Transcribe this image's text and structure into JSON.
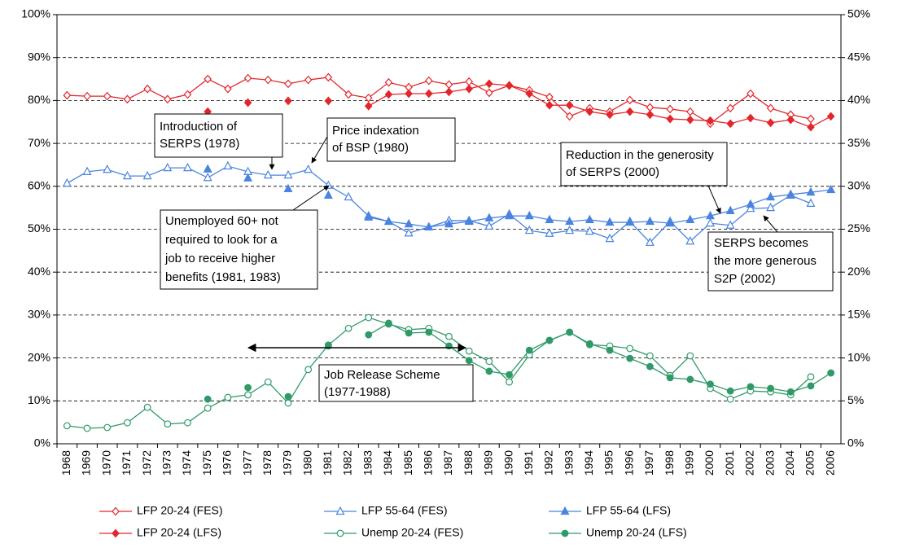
{
  "chart_data": {
    "type": "line",
    "categories": [
      "1968",
      "1969",
      "1970",
      "1971",
      "1972",
      "1973",
      "1974",
      "1975",
      "1976",
      "1977",
      "1978",
      "1979",
      "1980",
      "1981",
      "1982",
      "1983",
      "1984",
      "1985",
      "1986",
      "1987",
      "1988",
      "1989",
      "1990",
      "1991",
      "1992",
      "1993",
      "1994",
      "1995",
      "1996",
      "1997",
      "1998",
      "1999",
      "2000",
      "2001",
      "2002",
      "2003",
      "2004",
      "2005",
      "2006"
    ],
    "ylim": [
      0,
      100
    ],
    "yticks": [
      {
        "value": 0,
        "label": "0%"
      },
      {
        "value": 10,
        "label": "10%"
      },
      {
        "value": 20,
        "label": "20%"
      },
      {
        "value": 30,
        "label": "30%"
      },
      {
        "value": 40,
        "label": "40%"
      },
      {
        "value": 50,
        "label": "50%"
      },
      {
        "value": 60,
        "label": "60%"
      },
      {
        "value": 70,
        "label": "70%"
      },
      {
        "value": 80,
        "label": "80%"
      },
      {
        "value": 90,
        "label": "90%"
      },
      {
        "value": 100,
        "label": "100%"
      }
    ],
    "y2lim": [
      0,
      50
    ],
    "y2ticks": [
      {
        "value": 0,
        "label": "0%"
      },
      {
        "value": 5,
        "label": "5%"
      },
      {
        "value": 10,
        "label": "10%"
      },
      {
        "value": 15,
        "label": "15%"
      },
      {
        "value": 20,
        "label": "20%"
      },
      {
        "value": 25,
        "label": "25%"
      },
      {
        "value": 30,
        "label": "30%"
      },
      {
        "value": 35,
        "label": "35%"
      },
      {
        "value": 40,
        "label": "40%"
      },
      {
        "value": 45,
        "label": "45%"
      },
      {
        "value": 50,
        "label": "50%"
      }
    ],
    "grid": true,
    "legend": "bottom",
    "series": [
      {
        "name": "LFP 20-24 (FES)",
        "color": "#e3262b",
        "marker": "diamond",
        "filled": false,
        "values": [
          81.2,
          81.0,
          81.0,
          80.3,
          82.7,
          80.3,
          81.4,
          85.0,
          82.7,
          85.2,
          84.8,
          83.9,
          84.8,
          85.4,
          81.4,
          80.6,
          84.2,
          83.1,
          84.6,
          83.7,
          84.4,
          81.8,
          83.5,
          82.4,
          80.8,
          76.3,
          78.2,
          77.4,
          80.1,
          78.4,
          78.0,
          77.4,
          74.6,
          78.2,
          81.6,
          78.2,
          76.7,
          75.7,
          null
        ]
      },
      {
        "name": "LFP 55-64 (FES)",
        "color": "#4a84e0",
        "marker": "triangle",
        "filled": false,
        "values": [
          60.7,
          63.4,
          63.9,
          62.4,
          62.4,
          64.3,
          64.3,
          62.0,
          64.7,
          63.4,
          62.6,
          62.6,
          63.9,
          60.2,
          57.5,
          53.1,
          51.8,
          49.1,
          50.5,
          52.0,
          52.0,
          50.7,
          53.5,
          49.7,
          49.0,
          49.7,
          49.5,
          47.8,
          51.8,
          46.9,
          51.8,
          47.2,
          51.4,
          50.9,
          54.8,
          55.0,
          57.9,
          56.0,
          null
        ]
      },
      {
        "name": "LFP 55-64 (LFS)",
        "color": "#4a84e0",
        "marker": "triangle",
        "filled": true,
        "values": [
          null,
          null,
          null,
          null,
          null,
          null,
          null,
          64.0,
          null,
          61.9,
          null,
          59.4,
          null,
          57.9,
          null,
          52.8,
          51.8,
          51.2,
          50.5,
          51.2,
          51.8,
          52.6,
          53.1,
          53.1,
          52.2,
          51.8,
          52.2,
          51.6,
          51.6,
          51.8,
          51.4,
          52.2,
          53.1,
          54.3,
          55.8,
          57.5,
          58.1,
          58.6,
          59.2
        ]
      },
      {
        "name": "LFP 20-24 (LFS)",
        "color": "#e3262b",
        "marker": "diamond",
        "filled": true,
        "values": [
          null,
          null,
          null,
          null,
          null,
          null,
          null,
          77.4,
          null,
          79.5,
          null,
          79.9,
          null,
          79.9,
          null,
          78.7,
          81.4,
          81.6,
          81.6,
          82.0,
          82.7,
          83.9,
          83.5,
          81.6,
          78.9,
          78.9,
          77.4,
          76.7,
          77.4,
          76.7,
          75.7,
          75.5,
          75.3,
          74.6,
          75.9,
          74.8,
          75.5,
          73.8,
          76.3
        ]
      },
      {
        "name": "Unemp 20-24 (FES)",
        "color": "#2f9a68",
        "marker": "circle",
        "filled": false,
        "values": [
          4.2,
          3.6,
          3.8,
          4.9,
          8.5,
          4.6,
          4.9,
          8.3,
          10.8,
          11.4,
          14.4,
          9.5,
          17.3,
          23.0,
          26.9,
          29.4,
          27.9,
          26.6,
          26.9,
          25.0,
          21.6,
          19.2,
          14.4,
          20.7,
          24.1,
          26.0,
          23.1,
          22.8,
          22.2,
          20.5,
          15.9,
          20.5,
          12.9,
          10.4,
          12.3,
          12.1,
          11.4,
          15.6,
          null
        ]
      },
      {
        "name": "Unemp 20-24 (LFS)",
        "color": "#2f9a68",
        "marker": "circle",
        "filled": true,
        "values": [
          null,
          null,
          null,
          null,
          null,
          null,
          null,
          10.4,
          null,
          13.1,
          null,
          11.0,
          null,
          22.8,
          null,
          25.4,
          28.1,
          25.8,
          26.0,
          22.8,
          19.4,
          16.9,
          16.1,
          21.8,
          24.1,
          26.0,
          23.3,
          21.8,
          19.9,
          18.0,
          15.4,
          15.0,
          13.9,
          12.3,
          13.3,
          12.9,
          12.1,
          13.5,
          16.5
        ]
      }
    ],
    "annotations": [
      [
        "Introduction of",
        "SERPS (1978)"
      ],
      [
        "Price indexation",
        "of BSP (1980)"
      ],
      [
        "Unemployed 60+ not",
        "required to look for a",
        "job to receive higher",
        "benefits (1981, 1983)"
      ],
      [
        "Reduction in the generosity",
        "of SERPS (2000)"
      ],
      [
        "SERPS becomes",
        "the more generous",
        "S2P (2002)"
      ],
      [
        "Job Release Scheme",
        "(1977-1988)"
      ]
    ]
  }
}
